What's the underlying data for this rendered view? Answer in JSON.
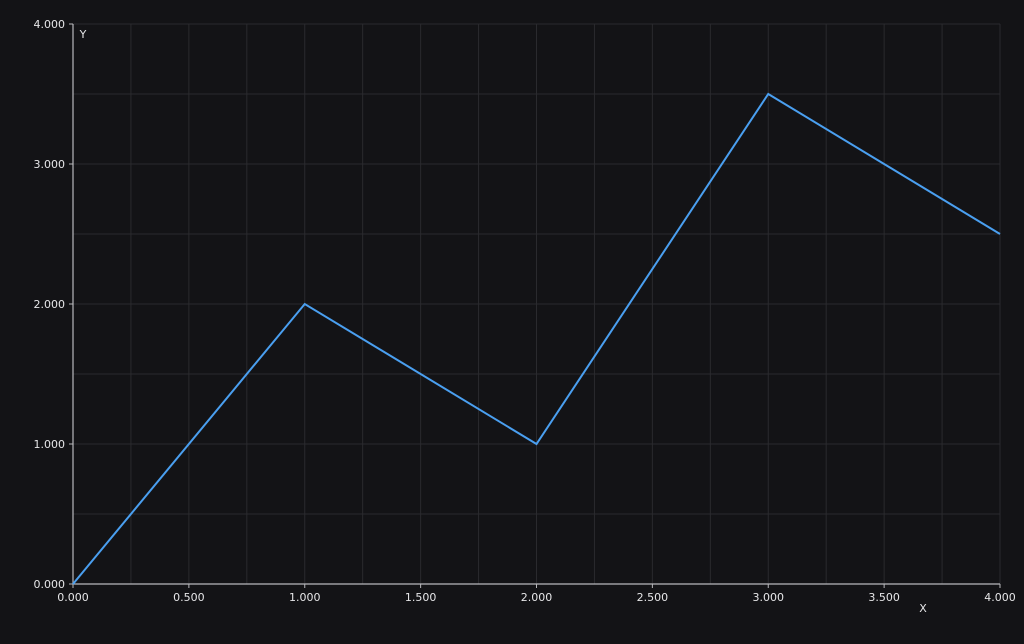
{
  "colors": {
    "background": "#131316",
    "grid": "#2a2a2e",
    "axis": "#b8b8bc",
    "tick_text": "#e6e6e8",
    "series": "#4a9ff0"
  },
  "chart_data": {
    "type": "line",
    "xlabel": "X",
    "ylabel": "Y",
    "xlim": [
      0,
      4
    ],
    "ylim": [
      0,
      4
    ],
    "x_ticks": [
      "0.000",
      "0.500",
      "1.000",
      "1.500",
      "2.000",
      "2.500",
      "3.000",
      "3.500",
      "4.000"
    ],
    "y_ticks": [
      "0.000",
      "1.000",
      "2.000",
      "3.000",
      "4.000"
    ],
    "grid": true,
    "series": [
      {
        "x": [
          0,
          1,
          2,
          3,
          4
        ],
        "y": [
          0,
          2,
          1,
          3.5,
          2.5
        ]
      }
    ]
  }
}
